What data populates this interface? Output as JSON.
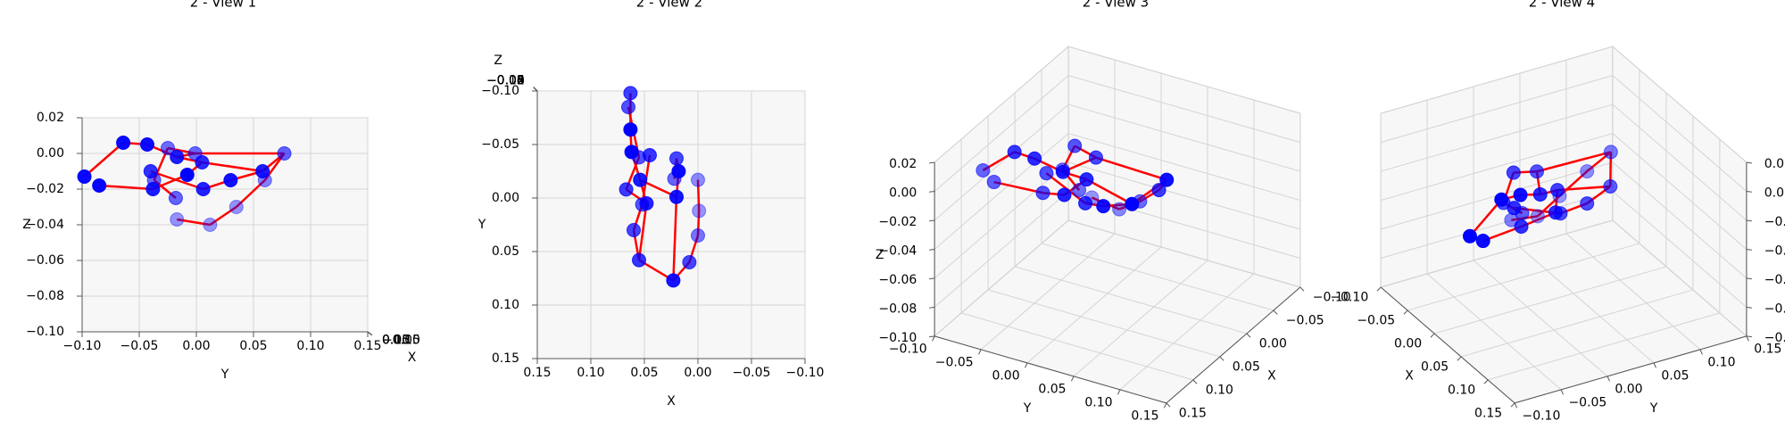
{
  "chart_data": {
    "type": "scatter3d",
    "views": [
      {
        "title": "2 - View 1"
      },
      {
        "title": "2 - View 2"
      },
      {
        "title": "2 - View 3"
      },
      {
        "title": "2 - View 4"
      }
    ],
    "xlabel": "X",
    "ylabel": "Y",
    "zlabel": "Z",
    "xlim": [
      -0.1,
      0.15
    ],
    "ylim": [
      -0.1,
      0.15
    ],
    "zlim": [
      -0.1,
      0.02
    ],
    "xticks": [
      {
        "value": -0.1,
        "label": "−0.10"
      },
      {
        "value": -0.05,
        "label": "−0.05"
      },
      {
        "value": 0,
        "label": "0.00"
      },
      {
        "value": 0.05,
        "label": "0.05"
      },
      {
        "value": 0.1,
        "label": "0.10"
      },
      {
        "value": 0.15,
        "label": "0.15"
      }
    ],
    "yticks": [
      {
        "value": -0.1,
        "label": "−0.10"
      },
      {
        "value": -0.05,
        "label": "−0.05"
      },
      {
        "value": 0,
        "label": "0.00"
      },
      {
        "value": 0.05,
        "label": "0.05"
      },
      {
        "value": 0.1,
        "label": "0.10"
      },
      {
        "value": 0.15,
        "label": "0.15"
      }
    ],
    "zticks": [
      {
        "value": -0.1,
        "label": "−0.10"
      },
      {
        "value": -0.08,
        "label": "−0.08"
      },
      {
        "value": -0.06,
        "label": "−0.06"
      },
      {
        "value": -0.04,
        "label": "−0.04"
      },
      {
        "value": -0.02,
        "label": "−0.02"
      },
      {
        "value": 0,
        "label": "0.00"
      },
      {
        "value": 0.02,
        "label": "0.02"
      }
    ],
    "point_color": "#0000ff",
    "line_color": "#ff0000",
    "points": {
      "x": [
        0.023,
        0.008,
        0.0,
        -0.001,
        0.0,
        0.02,
        0.018,
        0.02,
        0.022,
        0.054,
        0.062,
        0.063,
        0.063,
        0.048,
        0.067,
        0.055,
        0.065,
        0.055,
        0.06,
        0.052,
        0.045
      ],
      "y": [
        0.077,
        0.06,
        0.035,
        0.012,
        -0.017,
        -0.001,
        -0.025,
        -0.037,
        -0.018,
        -0.017,
        -0.043,
        -0.064,
        -0.098,
        0.005,
        -0.008,
        -0.038,
        -0.085,
        0.058,
        0.03,
        0.006,
        -0.04
      ],
      "z": [
        0.0,
        -0.015,
        -0.03,
        -0.04,
        -0.037,
        0.0,
        0.003,
        -0.015,
        -0.025,
        -0.002,
        0.005,
        0.006,
        -0.013,
        -0.005,
        -0.012,
        -0.02,
        -0.018,
        -0.01,
        -0.015,
        -0.02,
        -0.01
      ]
    }
  }
}
